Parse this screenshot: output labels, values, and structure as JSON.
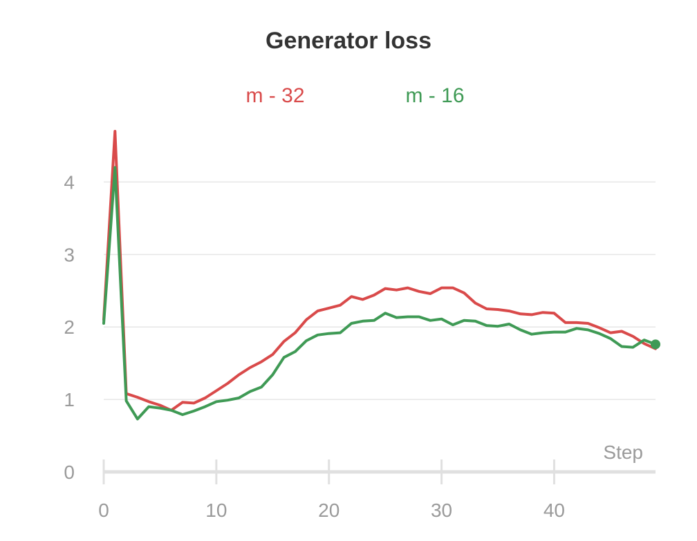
{
  "chart_data": {
    "type": "line",
    "title": "Generator loss",
    "xlabel": "Step",
    "ylabel": "",
    "xlim": [
      0,
      49
    ],
    "ylim": [
      0,
      4.7
    ],
    "x_ticks": [
      0,
      10,
      20,
      30,
      40
    ],
    "y_ticks": [
      0,
      1,
      2,
      3,
      4
    ],
    "grid": "horizontal",
    "legend_position": "top-center",
    "x": [
      0,
      1,
      2,
      3,
      4,
      5,
      6,
      7,
      8,
      9,
      10,
      11,
      12,
      13,
      14,
      15,
      16,
      17,
      18,
      19,
      20,
      21,
      22,
      23,
      24,
      25,
      26,
      27,
      28,
      29,
      30,
      31,
      32,
      33,
      34,
      35,
      36,
      37,
      38,
      39,
      40,
      41,
      42,
      43,
      44,
      45,
      46,
      47,
      48,
      49
    ],
    "series": [
      {
        "name": "m - 32",
        "color": "#d94a4a",
        "values": [
          2.1,
          4.7,
          1.08,
          1.03,
          0.97,
          0.92,
          0.85,
          0.96,
          0.95,
          1.02,
          1.12,
          1.22,
          1.34,
          1.44,
          1.52,
          1.62,
          1.8,
          1.92,
          2.1,
          2.22,
          2.26,
          2.3,
          2.42,
          2.38,
          2.44,
          2.53,
          2.51,
          2.54,
          2.49,
          2.46,
          2.54,
          2.54,
          2.47,
          2.33,
          2.25,
          2.24,
          2.22,
          2.18,
          2.17,
          2.2,
          2.19,
          2.06,
          2.06,
          2.05,
          1.99,
          1.92,
          1.94,
          1.87,
          1.77,
          1.7
        ]
      },
      {
        "name": "m - 16",
        "color": "#3f9a55",
        "values": [
          2.05,
          4.2,
          0.98,
          0.73,
          0.9,
          0.88,
          0.85,
          0.79,
          0.84,
          0.9,
          0.97,
          0.99,
          1.02,
          1.11,
          1.17,
          1.34,
          1.58,
          1.66,
          1.81,
          1.89,
          1.91,
          1.92,
          2.05,
          2.08,
          2.09,
          2.19,
          2.13,
          2.14,
          2.14,
          2.09,
          2.11,
          2.03,
          2.09,
          2.08,
          2.02,
          2.01,
          2.04,
          1.96,
          1.9,
          1.92,
          1.93,
          1.93,
          1.98,
          1.96,
          1.91,
          1.84,
          1.73,
          1.72,
          1.82,
          1.76
        ]
      }
    ]
  }
}
